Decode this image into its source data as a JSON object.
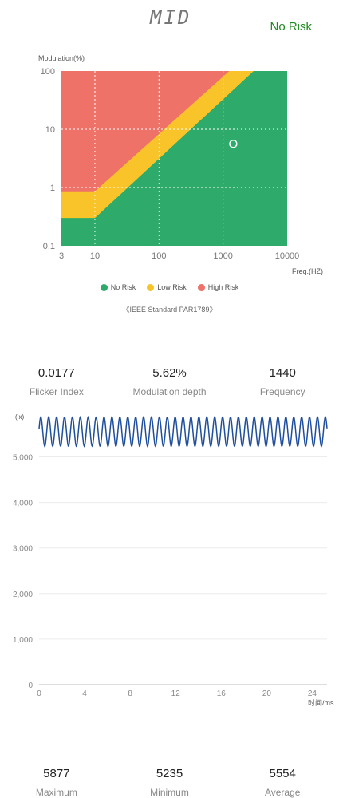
{
  "header": {
    "logo_text": "MID",
    "status": "No Risk",
    "status_color": "#1f8a1f"
  },
  "chart_data": [
    {
      "type": "area",
      "ylabel": "Modulation(%)",
      "xlabel": "Freq.(HZ)",
      "x_scale": "log",
      "y_scale": "log",
      "xlim": [
        3,
        10000
      ],
      "ylim": [
        0.1,
        100
      ],
      "x_ticks": [
        "3",
        "10",
        "100",
        "1000",
        "10000"
      ],
      "y_ticks": [
        "0.1",
        "1",
        "10",
        "100"
      ],
      "grid": "dashed",
      "regions": [
        {
          "name": "No Risk",
          "color": "#2eaa6a",
          "boundary": [
            [
              3,
              0.3
            ],
            [
              10,
              0.3
            ],
            [
              3000,
              100
            ]
          ]
        },
        {
          "name": "Low Risk",
          "color": "#f8c42a",
          "boundary": [
            [
              3,
              0.86
            ],
            [
              10,
              0.86
            ],
            [
              1250,
              100
            ]
          ]
        },
        {
          "name": "High Risk",
          "color": "#ee7268",
          "boundary": "above Low Risk"
        }
      ],
      "point": {
        "x": 1440,
        "y": 5.62
      },
      "legend": [
        "No Risk",
        "Low Risk",
        "High Risk"
      ],
      "legend_position": "bottom",
      "caption": "《IEEE Standard PAR1789》"
    },
    {
      "type": "line",
      "ylabel": "(lx)",
      "xlabel": "时间/ms",
      "xlim": [
        0,
        25.3
      ],
      "ylim": [
        0,
        5920
      ],
      "x_ticks": [
        "0",
        "4",
        "8",
        "12",
        "16",
        "20",
        "24"
      ],
      "y_ticks": [
        "0",
        "1,000",
        "2,000",
        "3,000",
        "4,000",
        "5,000"
      ],
      "series": [
        {
          "color": "#1f4e9c",
          "waveform": "sine",
          "frequency_per_ms": 1.44,
          "min": 5235,
          "max": 5877,
          "avg": 5554
        }
      ]
    }
  ],
  "metrics_top": [
    {
      "value": "0.0177",
      "label": "Flicker Index"
    },
    {
      "value": "5.62%",
      "label": "Modulation depth"
    },
    {
      "value": "1440",
      "label": "Frequency"
    }
  ],
  "metrics_bottom": [
    {
      "value": "5877",
      "label": "Maximum"
    },
    {
      "value": "5235",
      "label": "Minimum"
    },
    {
      "value": "5554",
      "label": "Average"
    }
  ]
}
